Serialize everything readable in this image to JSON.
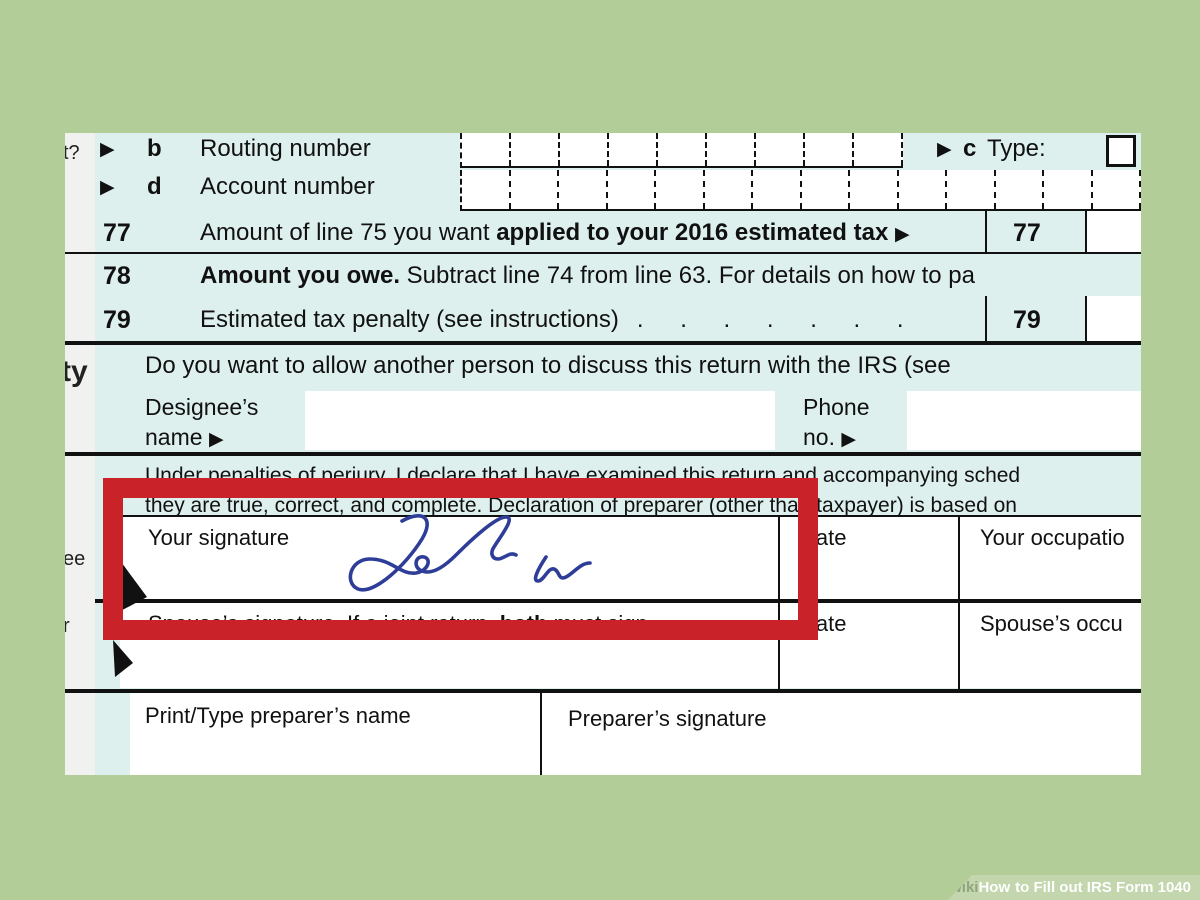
{
  "colors": {
    "page_background": "#b3cd99",
    "form_background": "#def0ee",
    "left_strip": "#f1f2ef",
    "highlight_red": "#c92228",
    "signature_ink": "#2e3d98",
    "banner_background": "#c3d6ad",
    "banner_wiki_text": "#8fa57f"
  },
  "form": {
    "margin_fragments": {
      "top": "t?",
      "party": "ty",
      "see": "ee",
      "r": "r"
    },
    "rows": {
      "b": {
        "arrow": "▶",
        "letter": "b",
        "label": "Routing number"
      },
      "c": {
        "arrow": "▶",
        "letter": "c",
        "label": "Type:"
      },
      "d": {
        "arrow": "▶",
        "letter": "d",
        "label": "Account number"
      },
      "77": {
        "num": "77",
        "text": "Amount of line 75 you want ",
        "bold": "applied to your 2016 estimated tax ",
        "arrow": "▶",
        "box_label": "77"
      },
      "78": {
        "num": "78",
        "bold": "Amount you owe.",
        "text": " Subtract line 74 from line 63. For details on how to pa"
      },
      "79": {
        "num": "79",
        "text": "Estimated tax penalty (see instructions)",
        "dots": ". . . . . . .",
        "box_label": "79"
      }
    },
    "third_party": {
      "question": "Do you want to allow another person to discuss this return with the IRS (see"
    },
    "designee": {
      "name_line1": "Designee’s",
      "name_line2": "name",
      "name_arrow": "▶",
      "phone_line1": "Phone",
      "phone_line2": "no.",
      "phone_arrow": "▶"
    },
    "sign_section": {
      "perjury_line1": "Under penalties of perjury, I declare that I have examined this return and accompanying sched",
      "perjury_line2": "they are true, correct, and complete. Declaration of preparer (other than taxpayer) is based on",
      "your_signature_label": "Your signature",
      "date_label": "Date",
      "your_occupation_label": "Your occupatio",
      "spouse_pre": "Spouse’s signature. If a joint return, ",
      "spouse_bold": "both",
      "spouse_post": " must sign.",
      "spouse_date_label": "Date",
      "spouse_occupation_label": "Spouse’s occu"
    },
    "preparer": {
      "name_label": "Print/Type preparer’s name",
      "signature_label": "Preparer’s signature"
    },
    "boxes": {
      "routing_cells": 9,
      "account_cells": 14
    }
  },
  "watermark": {
    "wiki": "wiki",
    "how": "How",
    "rest": "to Fill out IRS Form 1040"
  }
}
